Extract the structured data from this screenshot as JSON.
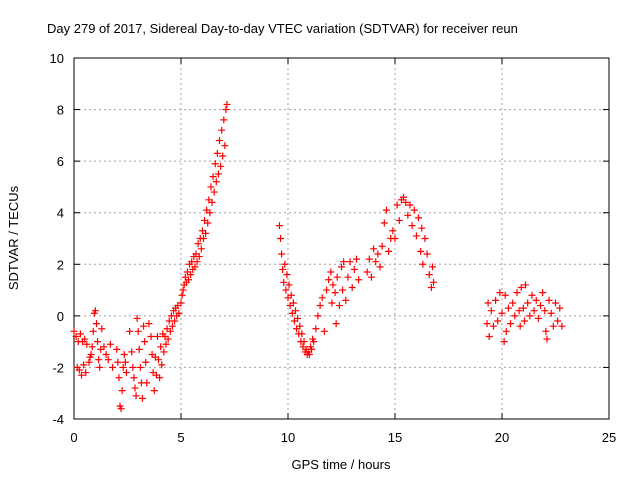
{
  "chart_data": {
    "type": "scatter",
    "title": "Day 279 of 2017, Sidereal Day-to-day VTEC variation (SDTVAR) for receiver reun",
    "xlabel": "GPS time / hours",
    "ylabel": "SDTVAR / TECUs",
    "xlim": [
      0,
      25
    ],
    "ylim": [
      -4,
      10
    ],
    "xticks": [
      0,
      5,
      10,
      15,
      20,
      25
    ],
    "yticks": [
      -4,
      -2,
      0,
      2,
      4,
      6,
      8,
      10
    ],
    "xtick_labels": [
      "0",
      "5",
      "10",
      "15",
      "20",
      "25"
    ],
    "ytick_labels": [
      "-4",
      "-2",
      "0",
      "2",
      "4",
      "6",
      "8",
      "10"
    ],
    "grid": true,
    "marker": "+",
    "marker_color": "#ff0000",
    "series": [
      {
        "name": "SDTVAR",
        "color": "#ff0000",
        "points": [
          [
            0.0,
            -0.6
          ],
          [
            0.1,
            -0.8
          ],
          [
            0.15,
            -2.0
          ],
          [
            0.2,
            -1.0
          ],
          [
            0.25,
            -2.1
          ],
          [
            0.3,
            -0.7
          ],
          [
            0.35,
            -2.3
          ],
          [
            0.4,
            -1.0
          ],
          [
            0.45,
            -1.9
          ],
          [
            0.5,
            -0.9
          ],
          [
            0.55,
            -2.2
          ],
          [
            0.6,
            -1.1
          ],
          [
            0.7,
            -1.8
          ],
          [
            0.75,
            -1.6
          ],
          [
            0.8,
            -1.5
          ],
          [
            0.85,
            -1.2
          ],
          [
            0.9,
            -0.6
          ],
          [
            0.95,
            0.1
          ],
          [
            1.0,
            0.2
          ],
          [
            1.05,
            -0.3
          ],
          [
            1.1,
            -1.0
          ],
          [
            1.15,
            -1.7
          ],
          [
            1.2,
            -2.0
          ],
          [
            1.25,
            -1.3
          ],
          [
            1.3,
            -0.5
          ],
          [
            1.4,
            -1.2
          ],
          [
            1.5,
            -1.5
          ],
          [
            1.6,
            -1.7
          ],
          [
            1.7,
            -1.1
          ],
          [
            1.8,
            -2.0
          ],
          [
            2.0,
            -1.3
          ],
          [
            2.05,
            -1.8
          ],
          [
            2.1,
            -2.4
          ],
          [
            2.15,
            -3.5
          ],
          [
            2.2,
            -3.6
          ],
          [
            2.25,
            -2.9
          ],
          [
            2.3,
            -2.0
          ],
          [
            2.35,
            -1.5
          ],
          [
            2.4,
            -1.8
          ],
          [
            2.45,
            -2.2
          ],
          [
            2.6,
            -0.6
          ],
          [
            2.7,
            -1.4
          ],
          [
            2.75,
            -2.0
          ],
          [
            2.8,
            -2.4
          ],
          [
            2.85,
            -2.8
          ],
          [
            2.9,
            -3.1
          ],
          [
            2.95,
            -0.1
          ],
          [
            3.0,
            -0.6
          ],
          [
            3.05,
            -1.3
          ],
          [
            3.1,
            -2.0
          ],
          [
            3.15,
            -2.6
          ],
          [
            3.2,
            -3.2
          ],
          [
            3.25,
            -0.4
          ],
          [
            3.3,
            -1.0
          ],
          [
            3.35,
            -1.8
          ],
          [
            3.4,
            -2.6
          ],
          [
            3.5,
            -0.3
          ],
          [
            3.6,
            -0.8
          ],
          [
            3.65,
            -1.5
          ],
          [
            3.7,
            -2.2
          ],
          [
            3.75,
            -2.9
          ],
          [
            3.8,
            -1.6
          ],
          [
            3.85,
            -2.3
          ],
          [
            3.9,
            -0.8
          ],
          [
            3.95,
            -1.7
          ],
          [
            4.0,
            -2.4
          ],
          [
            4.05,
            -1.2
          ],
          [
            4.1,
            -1.9
          ],
          [
            4.15,
            -0.7
          ],
          [
            4.2,
            -1.4
          ],
          [
            4.25,
            -0.8
          ],
          [
            4.3,
            -1.1
          ],
          [
            4.35,
            -0.5
          ],
          [
            4.4,
            -0.9
          ],
          [
            4.45,
            -0.2
          ],
          [
            4.5,
            -0.6
          ],
          [
            4.55,
            0.0
          ],
          [
            4.6,
            -0.4
          ],
          [
            4.65,
            0.2
          ],
          [
            4.7,
            -0.2
          ],
          [
            4.75,
            0.3
          ],
          [
            4.8,
            0.0
          ],
          [
            4.85,
            0.4
          ],
          [
            4.9,
            0.1
          ],
          [
            5.0,
            0.5
          ],
          [
            5.05,
            0.8
          ],
          [
            5.1,
            1.0
          ],
          [
            5.15,
            1.2
          ],
          [
            5.2,
            1.5
          ],
          [
            5.25,
            1.3
          ],
          [
            5.3,
            1.7
          ],
          [
            5.35,
            1.4
          ],
          [
            5.4,
            2.0
          ],
          [
            5.45,
            1.6
          ],
          [
            5.5,
            2.1
          ],
          [
            5.55,
            1.8
          ],
          [
            5.6,
            2.3
          ],
          [
            5.65,
            1.9
          ],
          [
            5.7,
            2.4
          ],
          [
            5.75,
            2.1
          ],
          [
            5.8,
            2.8
          ],
          [
            5.85,
            2.3
          ],
          [
            5.9,
            3.0
          ],
          [
            5.95,
            2.6
          ],
          [
            6.0,
            3.3
          ],
          [
            6.05,
            3.0
          ],
          [
            6.1,
            3.7
          ],
          [
            6.15,
            3.2
          ],
          [
            6.2,
            4.1
          ],
          [
            6.25,
            3.6
          ],
          [
            6.3,
            4.5
          ],
          [
            6.35,
            4.0
          ],
          [
            6.4,
            5.0
          ],
          [
            6.45,
            4.4
          ],
          [
            6.5,
            5.4
          ],
          [
            6.55,
            4.8
          ],
          [
            6.6,
            5.9
          ],
          [
            6.65,
            5.2
          ],
          [
            6.7,
            6.3
          ],
          [
            6.75,
            5.5
          ],
          [
            6.8,
            6.8
          ],
          [
            6.85,
            5.8
          ],
          [
            6.9,
            7.2
          ],
          [
            6.95,
            6.2
          ],
          [
            7.0,
            7.6
          ],
          [
            7.05,
            6.6
          ],
          [
            7.1,
            8.0
          ],
          [
            7.15,
            8.2
          ],
          [
            9.6,
            3.5
          ],
          [
            9.65,
            3.0
          ],
          [
            9.7,
            2.4
          ],
          [
            9.75,
            1.8
          ],
          [
            9.8,
            1.3
          ],
          [
            9.85,
            2.0
          ],
          [
            9.9,
            1.0
          ],
          [
            9.95,
            1.6
          ],
          [
            10.0,
            0.7
          ],
          [
            10.05,
            1.2
          ],
          [
            10.1,
            0.4
          ],
          [
            10.15,
            0.8
          ],
          [
            10.2,
            0.1
          ],
          [
            10.25,
            0.5
          ],
          [
            10.3,
            -0.2
          ],
          [
            10.35,
            0.2
          ],
          [
            10.4,
            -0.5
          ],
          [
            10.45,
            -0.1
          ],
          [
            10.5,
            -0.7
          ],
          [
            10.55,
            -0.4
          ],
          [
            10.6,
            -1.0
          ],
          [
            10.65,
            -0.7
          ],
          [
            10.7,
            -1.2
          ],
          [
            10.75,
            -1.0
          ],
          [
            10.8,
            -1.4
          ],
          [
            10.85,
            -1.3
          ],
          [
            10.9,
            -1.5
          ],
          [
            10.95,
            -1.4
          ],
          [
            11.0,
            -1.5
          ],
          [
            11.05,
            -1.2
          ],
          [
            11.1,
            -1.3
          ],
          [
            11.15,
            -0.9
          ],
          [
            11.2,
            -1.0
          ],
          [
            11.3,
            -0.5
          ],
          [
            11.4,
            0.0
          ],
          [
            11.5,
            0.4
          ],
          [
            11.6,
            0.7
          ],
          [
            11.7,
            -0.6
          ],
          [
            11.8,
            1.0
          ],
          [
            11.9,
            1.4
          ],
          [
            12.0,
            1.7
          ],
          [
            12.05,
            0.5
          ],
          [
            12.1,
            1.2
          ],
          [
            12.2,
            0.9
          ],
          [
            12.25,
            -0.3
          ],
          [
            12.3,
            1.5
          ],
          [
            12.4,
            0.4
          ],
          [
            12.5,
            1.9
          ],
          [
            12.55,
            1.0
          ],
          [
            12.6,
            2.1
          ],
          [
            12.7,
            0.6
          ],
          [
            12.8,
            1.5
          ],
          [
            12.9,
            2.1
          ],
          [
            13.0,
            1.1
          ],
          [
            13.1,
            1.8
          ],
          [
            13.2,
            2.2
          ],
          [
            13.3,
            1.4
          ],
          [
            13.7,
            1.7
          ],
          [
            13.8,
            2.2
          ],
          [
            13.9,
            1.5
          ],
          [
            14.0,
            2.6
          ],
          [
            14.1,
            2.1
          ],
          [
            14.2,
            2.4
          ],
          [
            14.3,
            1.9
          ],
          [
            14.4,
            2.7
          ],
          [
            14.5,
            3.6
          ],
          [
            14.6,
            4.1
          ],
          [
            14.7,
            2.5
          ],
          [
            14.8,
            3.0
          ],
          [
            14.9,
            3.3
          ],
          [
            15.0,
            3.0
          ],
          [
            15.1,
            4.3
          ],
          [
            15.2,
            3.7
          ],
          [
            15.3,
            4.5
          ],
          [
            15.4,
            4.6
          ],
          [
            15.5,
            4.4
          ],
          [
            15.6,
            3.9
          ],
          [
            15.7,
            4.3
          ],
          [
            15.8,
            3.5
          ],
          [
            15.9,
            4.1
          ],
          [
            16.0,
            3.1
          ],
          [
            16.1,
            3.8
          ],
          [
            16.2,
            2.5
          ],
          [
            16.25,
            3.4
          ],
          [
            16.3,
            2.0
          ],
          [
            16.4,
            3.0
          ],
          [
            16.5,
            2.4
          ],
          [
            16.6,
            1.6
          ],
          [
            16.7,
            1.1
          ],
          [
            16.75,
            1.9
          ],
          [
            16.8,
            1.3
          ],
          [
            19.3,
            -0.3
          ],
          [
            19.35,
            0.5
          ],
          [
            19.4,
            -0.8
          ],
          [
            19.5,
            0.2
          ],
          [
            19.6,
            -0.4
          ],
          [
            19.7,
            0.6
          ],
          [
            19.8,
            -0.2
          ],
          [
            19.9,
            0.9
          ],
          [
            20.0,
            0.1
          ],
          [
            20.1,
            -1.0
          ],
          [
            20.15,
            0.8
          ],
          [
            20.2,
            -0.6
          ],
          [
            20.3,
            0.3
          ],
          [
            20.4,
            -0.3
          ],
          [
            20.5,
            0.5
          ],
          [
            20.6,
            0.0
          ],
          [
            20.7,
            0.9
          ],
          [
            20.8,
            0.2
          ],
          [
            20.85,
            -0.4
          ],
          [
            20.9,
            1.1
          ],
          [
            21.0,
            0.3
          ],
          [
            21.05,
            -0.2
          ],
          [
            21.1,
            1.2
          ],
          [
            21.2,
            0.5
          ],
          [
            21.3,
            0.0
          ],
          [
            21.4,
            0.8
          ],
          [
            21.5,
            0.2
          ],
          [
            21.6,
            0.6
          ],
          [
            21.7,
            -0.1
          ],
          [
            21.8,
            0.4
          ],
          [
            21.9,
            0.9
          ],
          [
            22.0,
            0.2
          ],
          [
            22.05,
            -0.6
          ],
          [
            22.1,
            -0.9
          ],
          [
            22.2,
            0.6
          ],
          [
            22.3,
            0.1
          ],
          [
            22.4,
            -0.4
          ],
          [
            22.5,
            0.5
          ],
          [
            22.6,
            -0.2
          ],
          [
            22.7,
            0.3
          ],
          [
            22.8,
            -0.4
          ]
        ]
      }
    ]
  }
}
